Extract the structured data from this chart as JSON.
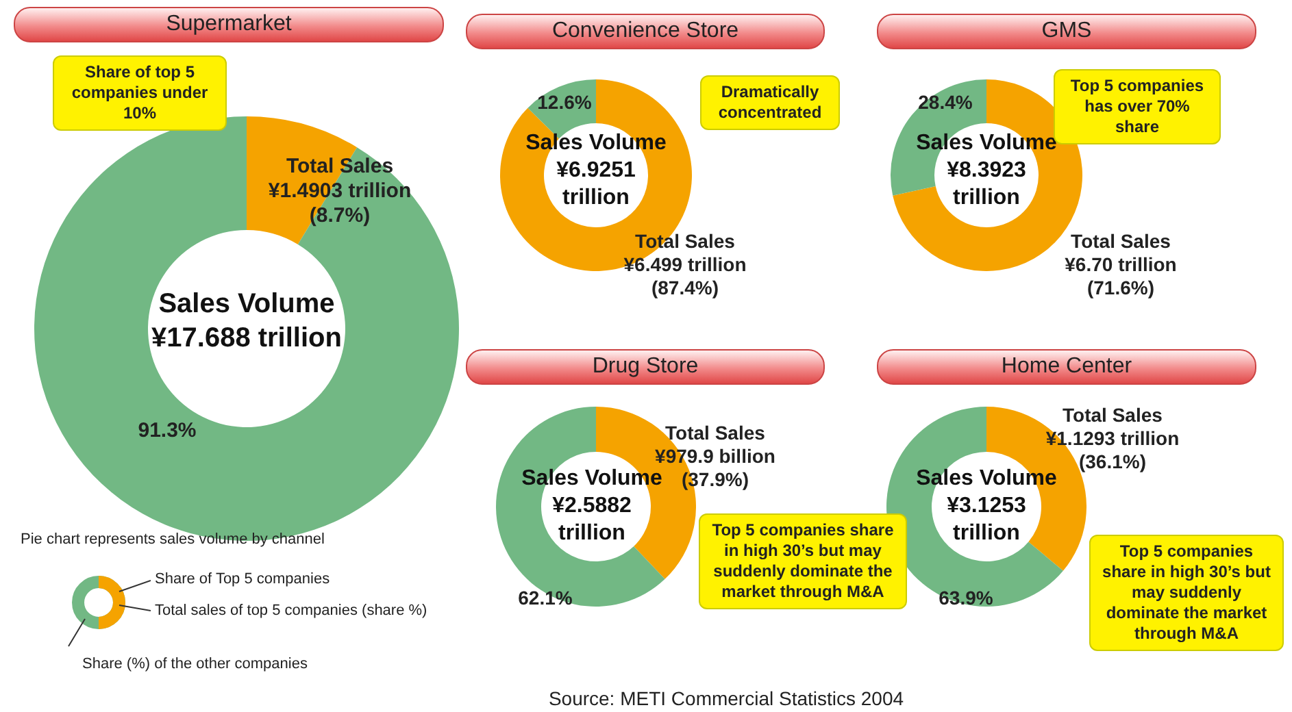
{
  "chart_data": [
    {
      "type": "donut",
      "title": "Supermarket",
      "categories": [
        "Total Sales",
        null
      ],
      "values": [
        8.7,
        91.3
      ],
      "colors": [
        "#f5a300",
        "#72b884"
      ],
      "value_labels": [
        "¥1.4903 trillion\n(8.7%)",
        "91.3%"
      ],
      "annotations": [
        "Sales Volume\n¥17.688 trillion",
        "Share of top 5 companies under 10%"
      ]
    },
    {
      "type": "donut",
      "title": "Convenience Store",
      "categories": [
        "Total Sales",
        null
      ],
      "values": [
        87.4,
        12.6
      ],
      "colors": [
        "#f5a300",
        "#72b884"
      ],
      "value_labels": [
        "¥6.499 trillion\n(87.4%)",
        "12.6%"
      ],
      "annotations": [
        "Sales Volume\n¥6.9251\ntrillion",
        "Dramatically concentrated"
      ]
    },
    {
      "type": "donut",
      "title": "GMS",
      "categories": [
        "Total Sales",
        null
      ],
      "values": [
        71.6,
        28.4
      ],
      "colors": [
        "#f5a300",
        "#72b884"
      ],
      "value_labels": [
        "¥6.70 trillion\n(71.6%)",
        "28.4%"
      ],
      "annotations": [
        "Sales Volume\n¥8.3923\ntrillion",
        "Top 5 companies has over 70% share"
      ]
    },
    {
      "type": "donut",
      "title": "Drug Store",
      "categories": [
        "Total Sales",
        null
      ],
      "values": [
        37.9,
        62.1
      ],
      "colors": [
        "#f5a300",
        "#72b884"
      ],
      "value_labels": [
        "¥979.9 billion\n(37.9%)",
        "62.1%"
      ],
      "annotations": [
        "Sales Volume\n¥2.5882\ntrillion",
        "Top 5 companies share in high 30’s but may suddenly dominate the market through M&A"
      ]
    },
    {
      "type": "donut",
      "title": "Home Center",
      "categories": [
        "Total Sales",
        null
      ],
      "values": [
        36.1,
        63.9
      ],
      "colors": [
        "#f5a300",
        "#72b884"
      ],
      "value_labels": [
        "¥1.1293 trillion\n(36.1%)",
        "63.9%"
      ],
      "annotations": [
        "Sales Volume\n¥3.1253\ntrillion",
        "Top 5 companies share in high 30’s but may suddenly dominate the market through M&A"
      ]
    },
    {
      "type": "other",
      "annotations": [
        "Pie chart represents sales volume by channel",
        "Share of Top 5 companies",
        "Total sales of top 5 companies (share %)",
        "Share (%) of the other companies",
        "Source: METI  Commercial Statistics 2004"
      ]
    }
  ]
}
